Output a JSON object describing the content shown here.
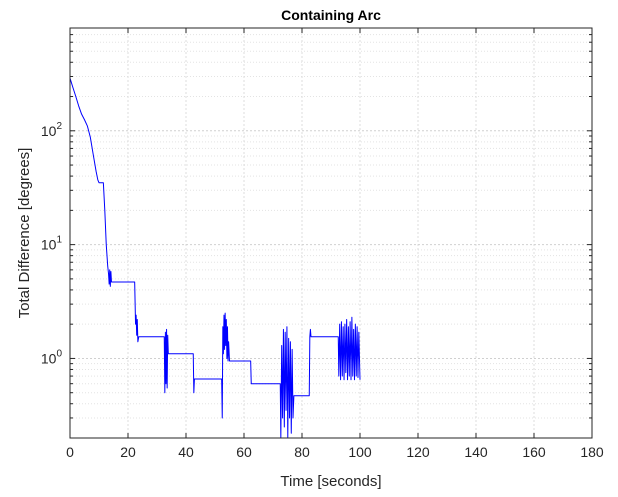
{
  "chart_data": {
    "type": "line",
    "title": "Containing Arc",
    "xlabel": "Time [seconds]",
    "ylabel": "Total Difference [degrees]",
    "xlim": [
      0,
      180
    ],
    "ylim": [
      0.2,
      800
    ],
    "yscale": "log",
    "grid": true,
    "minor_grid": true,
    "line_color": "#0000ff",
    "x_ticks": [
      0,
      20,
      40,
      60,
      80,
      100,
      120,
      140,
      160,
      180
    ],
    "x_tick_labels": [
      "0",
      "20",
      "40",
      "60",
      "80",
      "100",
      "120",
      "140",
      "160",
      "180"
    ],
    "y_ticks": [
      1,
      10,
      100
    ],
    "y_tick_labels": [
      {
        "base": "10",
        "exp": "0"
      },
      {
        "base": "10",
        "exp": "1"
      },
      {
        "base": "10",
        "exp": "2"
      }
    ],
    "series": [
      {
        "points": [
          [
            0,
            290
          ],
          [
            1,
            240
          ],
          [
            2,
            200
          ],
          [
            3,
            165
          ],
          [
            4,
            140
          ],
          [
            5,
            125
          ],
          [
            6,
            110
          ],
          [
            7,
            88
          ],
          [
            8,
            62
          ],
          [
            9,
            44
          ],
          [
            9.6,
            37
          ],
          [
            10,
            35
          ],
          [
            11.5,
            35
          ],
          [
            12,
            20
          ],
          [
            12.5,
            10
          ],
          [
            13,
            6.5
          ],
          [
            13.3,
            5.5
          ],
          [
            13.5,
            4.5
          ],
          [
            13.7,
            6
          ],
          [
            13.9,
            4.3
          ],
          [
            14.1,
            5.8
          ],
          [
            14.3,
            4.7
          ],
          [
            14.6,
            4.7
          ],
          [
            18,
            4.7
          ],
          [
            22.3,
            4.7
          ],
          [
            22.6,
            2.0
          ],
          [
            22.8,
            2.4
          ],
          [
            23.0,
            1.6
          ],
          [
            23.2,
            2.2
          ],
          [
            23.4,
            1.4
          ],
          [
            23.7,
            1.55
          ],
          [
            27,
            1.55
          ],
          [
            32.5,
            1.55
          ],
          [
            32.7,
            0.5
          ],
          [
            32.9,
            1.7
          ],
          [
            33.1,
            0.6
          ],
          [
            33.3,
            1.8
          ],
          [
            33.5,
            0.55
          ],
          [
            33.7,
            1.6
          ],
          [
            33.9,
            1.1
          ],
          [
            37,
            1.1
          ],
          [
            42.5,
            1.1
          ],
          [
            42.7,
            0.5
          ],
          [
            42.9,
            0.66
          ],
          [
            47,
            0.66
          ],
          [
            52.3,
            0.66
          ],
          [
            52.5,
            0.3
          ],
          [
            52.7,
            1.9
          ],
          [
            52.9,
            1.1
          ],
          [
            53.1,
            2.4
          ],
          [
            53.3,
            1.2
          ],
          [
            53.5,
            2.5
          ],
          [
            53.7,
            1.3
          ],
          [
            53.9,
            2.2
          ],
          [
            54.1,
            1.0
          ],
          [
            54.3,
            1.9
          ],
          [
            54.5,
            0.95
          ],
          [
            54.7,
            1.4
          ],
          [
            55,
            0.95
          ],
          [
            58,
            0.95
          ],
          [
            62.3,
            0.95
          ],
          [
            62.5,
            0.6
          ],
          [
            68,
            0.6
          ],
          [
            72.5,
            0.6
          ],
          [
            72.7,
            0.2
          ],
          [
            73.0,
            1.3
          ],
          [
            73.3,
            0.3
          ],
          [
            73.6,
            1.8
          ],
          [
            73.9,
            0.25
          ],
          [
            74.2,
            1.7
          ],
          [
            74.5,
            0.35
          ],
          [
            74.8,
            1.9
          ],
          [
            75.1,
            0.2
          ],
          [
            75.4,
            1.5
          ],
          [
            75.7,
            0.3
          ],
          [
            76.0,
            1.4
          ],
          [
            76.3,
            0.22
          ],
          [
            76.6,
            1.2
          ],
          [
            76.9,
            0.3
          ],
          [
            77.2,
            0.47
          ],
          [
            80,
            0.47
          ],
          [
            82.5,
            0.47
          ],
          [
            82.7,
            1.55
          ],
          [
            82.9,
            1.8
          ],
          [
            83.1,
            1.55
          ],
          [
            88,
            1.55
          ],
          [
            92.5,
            1.55
          ],
          [
            92.7,
            0.7
          ],
          [
            93.0,
            2.0
          ],
          [
            93.3,
            0.65
          ],
          [
            93.6,
            2.1
          ],
          [
            93.9,
            0.7
          ],
          [
            94.2,
            1.9
          ],
          [
            94.5,
            0.65
          ],
          [
            94.8,
            2.0
          ],
          [
            95.1,
            0.75
          ],
          [
            95.4,
            2.2
          ],
          [
            95.7,
            0.65
          ],
          [
            96.0,
            1.9
          ],
          [
            96.3,
            0.7
          ],
          [
            96.6,
            2.1
          ],
          [
            96.9,
            0.65
          ],
          [
            97.2,
            2.3
          ],
          [
            97.5,
            0.7
          ],
          [
            97.8,
            1.8
          ],
          [
            98.1,
            0.65
          ],
          [
            98.4,
            2.0
          ],
          [
            98.7,
            0.7
          ],
          [
            99.0,
            1.9
          ],
          [
            99.3,
            0.68
          ],
          [
            99.6,
            1.7
          ],
          [
            100,
            0.65
          ]
        ]
      }
    ]
  }
}
